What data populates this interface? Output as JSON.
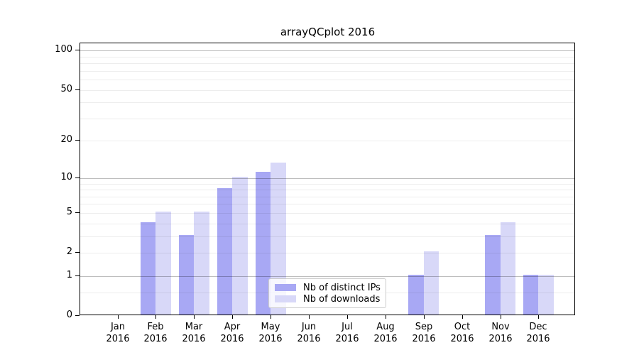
{
  "chart_data": {
    "type": "bar",
    "title": "arrayQCplot 2016",
    "x_months": [
      "Jan",
      "Feb",
      "Mar",
      "Apr",
      "May",
      "Jun",
      "Jul",
      "Aug",
      "Sep",
      "Oct",
      "Nov",
      "Dec"
    ],
    "x_year": "2016",
    "series": [
      {
        "name": "Nb of distinct IPs",
        "color": "#a8a8f4",
        "values": [
          0,
          4,
          3,
          8,
          11,
          0,
          0,
          0,
          1,
          0,
          3,
          1
        ]
      },
      {
        "name": "Nb of downloads",
        "color": "#d8d8f8",
        "values": [
          0,
          5,
          5,
          10,
          13,
          0,
          0,
          0,
          2,
          0,
          4,
          1
        ]
      }
    ],
    "yscale": "log1p",
    "ylim": [
      0,
      114
    ],
    "yticks": [
      0,
      1,
      2,
      5,
      10,
      20,
      50,
      100
    ],
    "gridlines": {
      "major": [
        1,
        10,
        100
      ],
      "minor": [
        0.5,
        2,
        3,
        4,
        5,
        6,
        7,
        8,
        9,
        20,
        30,
        40,
        50,
        60,
        70,
        80,
        90
      ]
    },
    "grid_on": true,
    "legend_position": "lower center"
  },
  "colors": {
    "background": "#ffffff",
    "spine": "#000000",
    "text": "#000000",
    "major_grid": "rgba(0,0,0,0.26)",
    "minor_grid": "rgba(0,0,0,0.07)",
    "legend_border": "#cccccc",
    "legend_bg": "rgba(255,255,255,0.8)"
  }
}
